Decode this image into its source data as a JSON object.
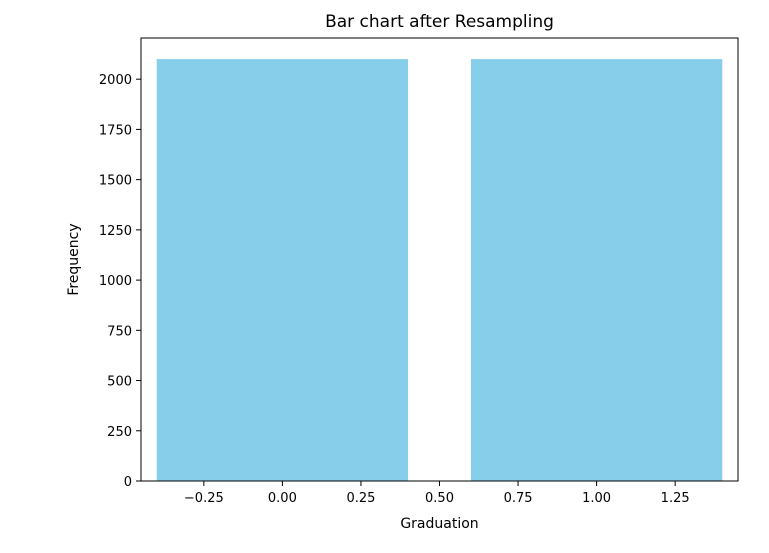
{
  "chart_data": {
    "type": "bar",
    "title": "Bar chart after Resampling",
    "xlabel": "Graduation",
    "ylabel": "Frequency",
    "bars": [
      {
        "x": 0,
        "width": 0.8,
        "value": 2100
      },
      {
        "x": 1,
        "width": 0.8,
        "value": 2100
      }
    ],
    "bar_color": "#87ceeb",
    "xlim": [
      -0.45,
      1.45
    ],
    "ylim": [
      0,
      2205
    ],
    "xticks": [
      -0.25,
      0.0,
      0.25,
      0.5,
      0.75,
      1.0,
      1.25
    ],
    "xtick_labels": [
      "−0.25",
      "0.00",
      "0.25",
      "0.50",
      "0.75",
      "1.00",
      "1.25"
    ],
    "yticks": [
      0,
      250,
      500,
      750,
      1000,
      1250,
      1500,
      1750,
      2000
    ],
    "ytick_labels": [
      "0",
      "250",
      "500",
      "750",
      "1000",
      "1250",
      "1500",
      "1750",
      "2000"
    ],
    "grid": false,
    "legend": "none"
  }
}
